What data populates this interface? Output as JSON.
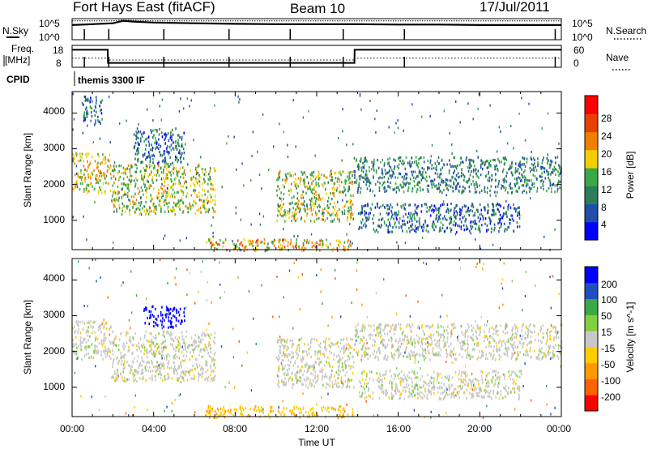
{
  "header": {
    "title": "Fort Hays East (fitACF)",
    "beam": "Beam 10",
    "date": "17/Jul/2011"
  },
  "panels": {
    "nsky_label": "N.Sky",
    "nsky_ticks": [
      "10^5",
      "10^0"
    ],
    "nsearch_label": "N.Search",
    "nsearch_ticks": [
      "10^5",
      "10^0"
    ],
    "freq_label_1": "Freq.",
    "freq_label_2": "[MHz]",
    "freq_ticks": [
      "18",
      "8"
    ],
    "nave_label": "Nave",
    "nave_ticks": [
      "60",
      "0"
    ],
    "cpid_label": "CPID",
    "cpid_value": "themis 3300 IF"
  },
  "axes": {
    "ylabel": "Slant Range [km]",
    "y_ticks": [
      "4000",
      "3000",
      "2000",
      "1000"
    ],
    "x_ticks": [
      "00:00",
      "04:00",
      "08:00",
      "12:00",
      "16:00",
      "20:00",
      "00:00"
    ],
    "xlabel": "Time UT"
  },
  "colorbars": {
    "power": {
      "label": "Power [dB]",
      "ticks": [
        "28",
        "24",
        "20",
        "16",
        "12",
        "8",
        "4"
      ],
      "colors": [
        "#0000ff",
        "#1f4fa8",
        "#2e7d5a",
        "#3aa845",
        "#f0d000",
        "#f08000",
        "#e84000",
        "#ff0000"
      ]
    },
    "velocity": {
      "label": "Velocity [m s^-1]",
      "ticks": [
        "200",
        "100",
        "50",
        "15",
        "-15",
        "-50",
        "-100",
        "-200"
      ],
      "colors": [
        "#ff0000",
        "#ff6000",
        "#ff9900",
        "#ffcc00",
        "#c8c8c8",
        "#80d040",
        "#3aa845",
        "#2050c0",
        "#0000ff"
      ]
    }
  },
  "chart_data": [
    {
      "type": "line",
      "title": "N.Sky / N.Search",
      "x_range_hours": [
        0,
        24
      ],
      "ylim": [
        "10^0",
        "10^5"
      ],
      "x": [
        0,
        1,
        2,
        2.5,
        3,
        4,
        6,
        8,
        10,
        12,
        14,
        16,
        18,
        20,
        22,
        24
      ],
      "series": [
        {
          "name": "N.Sky",
          "values": [
            3000,
            5000,
            8000,
            30000,
            20000,
            12000,
            8000,
            6000,
            5000,
            5000,
            5000,
            4000,
            4000,
            3000,
            3000,
            3000
          ]
        },
        {
          "name": "N.Search",
          "values": [
            30000,
            30000,
            30000,
            50000,
            40000,
            30000,
            30000,
            30000,
            30000,
            30000,
            30000,
            30000,
            30000,
            30000,
            30000,
            30000
          ]
        }
      ]
    },
    {
      "type": "line",
      "title": "Freq. / Nave",
      "x_range_hours": [
        0,
        24
      ],
      "ylim_freq": [
        8,
        18
      ],
      "ylim_nave": [
        0,
        60
      ],
      "x": [
        0,
        0.01,
        1.75,
        1.76,
        13.85,
        13.86,
        24
      ],
      "series": [
        {
          "name": "Freq.",
          "values": [
            16,
            16,
            16,
            10,
            10,
            16,
            16
          ]
        },
        {
          "name": "Nave",
          "values": [
            25,
            25,
            25,
            20,
            20,
            25,
            25
          ]
        }
      ]
    },
    {
      "type": "heatmap",
      "title": "Power [dB]",
      "x_range_hours": [
        0,
        24
      ],
      "ylim": [
        180,
        4600
      ],
      "regions": [
        {
          "t0": 0.0,
          "t1": 1.9,
          "r0": 1800,
          "r1": 2900,
          "value": 18
        },
        {
          "t0": 0.5,
          "t1": 1.5,
          "r0": 3700,
          "r1": 4500,
          "value": 8
        },
        {
          "t0": 1.9,
          "t1": 7.0,
          "r0": 1200,
          "r1": 2600,
          "value": 16
        },
        {
          "t0": 3.0,
          "t1": 5.5,
          "r0": 2600,
          "r1": 3600,
          "value": 8
        },
        {
          "t0": 6.5,
          "t1": 13.8,
          "r0": 180,
          "r1": 500,
          "value": 20
        },
        {
          "t0": 10.0,
          "t1": 13.8,
          "r0": 1000,
          "r1": 2400,
          "value": 16
        },
        {
          "t0": 13.8,
          "t1": 24.0,
          "r0": 1800,
          "r1": 2800,
          "value": 10
        },
        {
          "t0": 14.0,
          "t1": 22.0,
          "r0": 700,
          "r1": 1500,
          "value": 8
        }
      ]
    },
    {
      "type": "heatmap",
      "title": "Velocity [m s^-1]",
      "x_range_hours": [
        0,
        24
      ],
      "ylim": [
        180,
        4600
      ],
      "regions": [
        {
          "t0": 0.0,
          "t1": 1.9,
          "r0": 1800,
          "r1": 2900,
          "value": 0
        },
        {
          "t0": 1.9,
          "t1": 7.0,
          "r0": 1200,
          "r1": 2600,
          "value": 0
        },
        {
          "t0": 3.5,
          "t1": 5.5,
          "r0": 2700,
          "r1": 3300,
          "value": 220
        },
        {
          "t0": 6.5,
          "t1": 13.8,
          "r0": 180,
          "r1": 500,
          "value": -40
        },
        {
          "t0": 10.0,
          "t1": 13.8,
          "r0": 1000,
          "r1": 2400,
          "value": 0
        },
        {
          "t0": 13.8,
          "t1": 24.0,
          "r0": 1800,
          "r1": 2800,
          "value": 0
        },
        {
          "t0": 14.0,
          "t1": 22.0,
          "r0": 700,
          "r1": 1500,
          "value": 0
        }
      ]
    }
  ]
}
